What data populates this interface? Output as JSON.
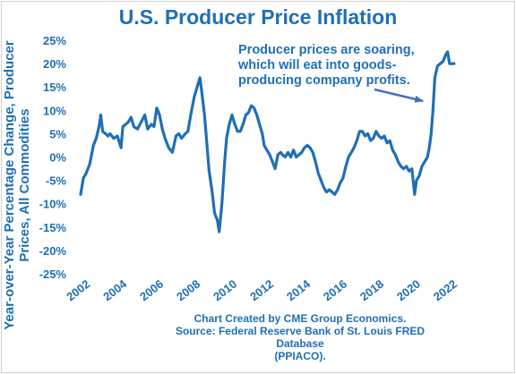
{
  "chart_data": {
    "type": "line",
    "title": "U.S. Producer Price Inflation",
    "ylabel": "Year-over-Year Percentage Change, Producer Prices, All Commodities",
    "xlabel": "",
    "ylim": [
      -25,
      25
    ],
    "xlim": [
      2002,
      2022.6
    ],
    "grid": false,
    "y_ticks": [
      "25%",
      "20%",
      "15%",
      "10%",
      "5%",
      "0%",
      "-5%",
      "-10%",
      "-15%",
      "-20%",
      "-25%"
    ],
    "x_ticks": [
      "2002",
      "2004",
      "2006",
      "2008",
      "2010",
      "2012",
      "2014",
      "2016",
      "2018",
      "2020",
      "2022"
    ],
    "series": [
      {
        "color": "#1f6fb5",
        "x": [
          2002.0,
          2002.15,
          2002.3,
          2002.5,
          2002.7,
          2002.85,
          2003.0,
          2003.1,
          2003.2,
          2003.35,
          2003.5,
          2003.6,
          2003.8,
          2004.0,
          2004.2,
          2004.3,
          2004.45,
          2004.6,
          2004.75,
          2004.9,
          2005.1,
          2005.3,
          2005.5,
          2005.65,
          2005.85,
          2006.0,
          2006.15,
          2006.3,
          2006.45,
          2006.6,
          2006.8,
          2007.0,
          2007.2,
          2007.35,
          2007.5,
          2007.7,
          2007.85,
          2008.0,
          2008.2,
          2008.35,
          2008.5,
          2008.6,
          2008.75,
          2008.9,
          2009.0,
          2009.15,
          2009.3,
          2009.45,
          2009.55,
          2009.7,
          2009.85,
          2009.95,
          2010.1,
          2010.25,
          2010.4,
          2010.55,
          2010.7,
          2010.85,
          2011.0,
          2011.15,
          2011.3,
          2011.45,
          2011.6,
          2011.75,
          2011.9,
          2012.0,
          2012.15,
          2012.3,
          2012.45,
          2012.6,
          2012.75,
          2012.9,
          2013.0,
          2013.15,
          2013.3,
          2013.45,
          2013.6,
          2013.75,
          2013.9,
          2014.05,
          2014.2,
          2014.35,
          2014.5,
          2014.65,
          2014.8,
          2014.95,
          2015.1,
          2015.25,
          2015.4,
          2015.55,
          2015.7,
          2015.85,
          2016.0,
          2016.15,
          2016.3,
          2016.45,
          2016.6,
          2016.75,
          2016.9,
          2017.05,
          2017.2,
          2017.35,
          2017.5,
          2017.65,
          2017.8,
          2017.95,
          2018.1,
          2018.25,
          2018.4,
          2018.55,
          2018.7,
          2018.85,
          2019.0,
          2019.15,
          2019.3,
          2019.45,
          2019.6,
          2019.75,
          2019.9,
          2020.05,
          2020.2,
          2020.3,
          2020.45,
          2020.6,
          2020.75,
          2020.9,
          2021.0,
          2021.1,
          2021.2,
          2021.3,
          2021.45,
          2021.6,
          2021.75,
          2021.9,
          2022.0,
          2022.1,
          2022.2,
          2022.35
        ],
        "values": [
          -8.0,
          -4.5,
          -3.5,
          -1.5,
          2.5,
          4.0,
          6.5,
          9.0,
          5.5,
          5.0,
          4.5,
          5.0,
          4.0,
          4.5,
          2.0,
          6.5,
          7.0,
          7.5,
          8.5,
          6.5,
          6.0,
          7.5,
          9.0,
          6.0,
          7.0,
          6.5,
          10.5,
          9.0,
          6.0,
          4.0,
          2.0,
          1.0,
          4.5,
          5.0,
          4.0,
          5.0,
          5.5,
          9.0,
          13.0,
          15.0,
          17.0,
          14.0,
          9.0,
          2.0,
          -3.0,
          -7.0,
          -12.0,
          -13.5,
          -16.0,
          -10.0,
          -1.0,
          4.0,
          7.0,
          9.0,
          7.0,
          5.5,
          5.5,
          7.0,
          9.0,
          9.5,
          11.0,
          10.5,
          9.0,
          7.0,
          5.0,
          2.5,
          1.5,
          0.5,
          -1.0,
          -2.5,
          0.5,
          1.0,
          0.5,
          0.0,
          1.0,
          0.0,
          1.5,
          0.0,
          0.5,
          1.0,
          2.0,
          2.5,
          2.0,
          1.0,
          -1.0,
          -3.5,
          -5.0,
          -6.5,
          -7.5,
          -7.0,
          -7.5,
          -8.0,
          -7.0,
          -5.5,
          -4.5,
          -2.0,
          0.0,
          1.0,
          2.0,
          3.5,
          5.5,
          5.5,
          4.5,
          5.0,
          3.5,
          4.0,
          5.5,
          4.5,
          4.0,
          4.5,
          3.0,
          3.5,
          1.5,
          0.5,
          -1.0,
          -2.0,
          -2.5,
          -2.0,
          -3.0,
          -2.5,
          -8.0,
          -5.0,
          -4.0,
          -2.0,
          -1.0,
          0.0,
          2.0,
          5.0,
          10.0,
          17.0,
          19.5,
          20.0,
          20.5,
          22.0,
          22.5,
          20.0,
          20.0,
          20.0
        ]
      }
    ],
    "annotation": {
      "text_lines": [
        "Producer prices are soaring,",
        "which will eat into goods-",
        "producing company profits."
      ],
      "arrow_target": [
        2020.75,
        12.0
      ]
    },
    "footnote_lines": [
      "Chart Created by CME Group Economics.",
      "Source:  Federal Reserve Bank of St. Louis FRED Database",
      "(PPIACO)."
    ]
  }
}
